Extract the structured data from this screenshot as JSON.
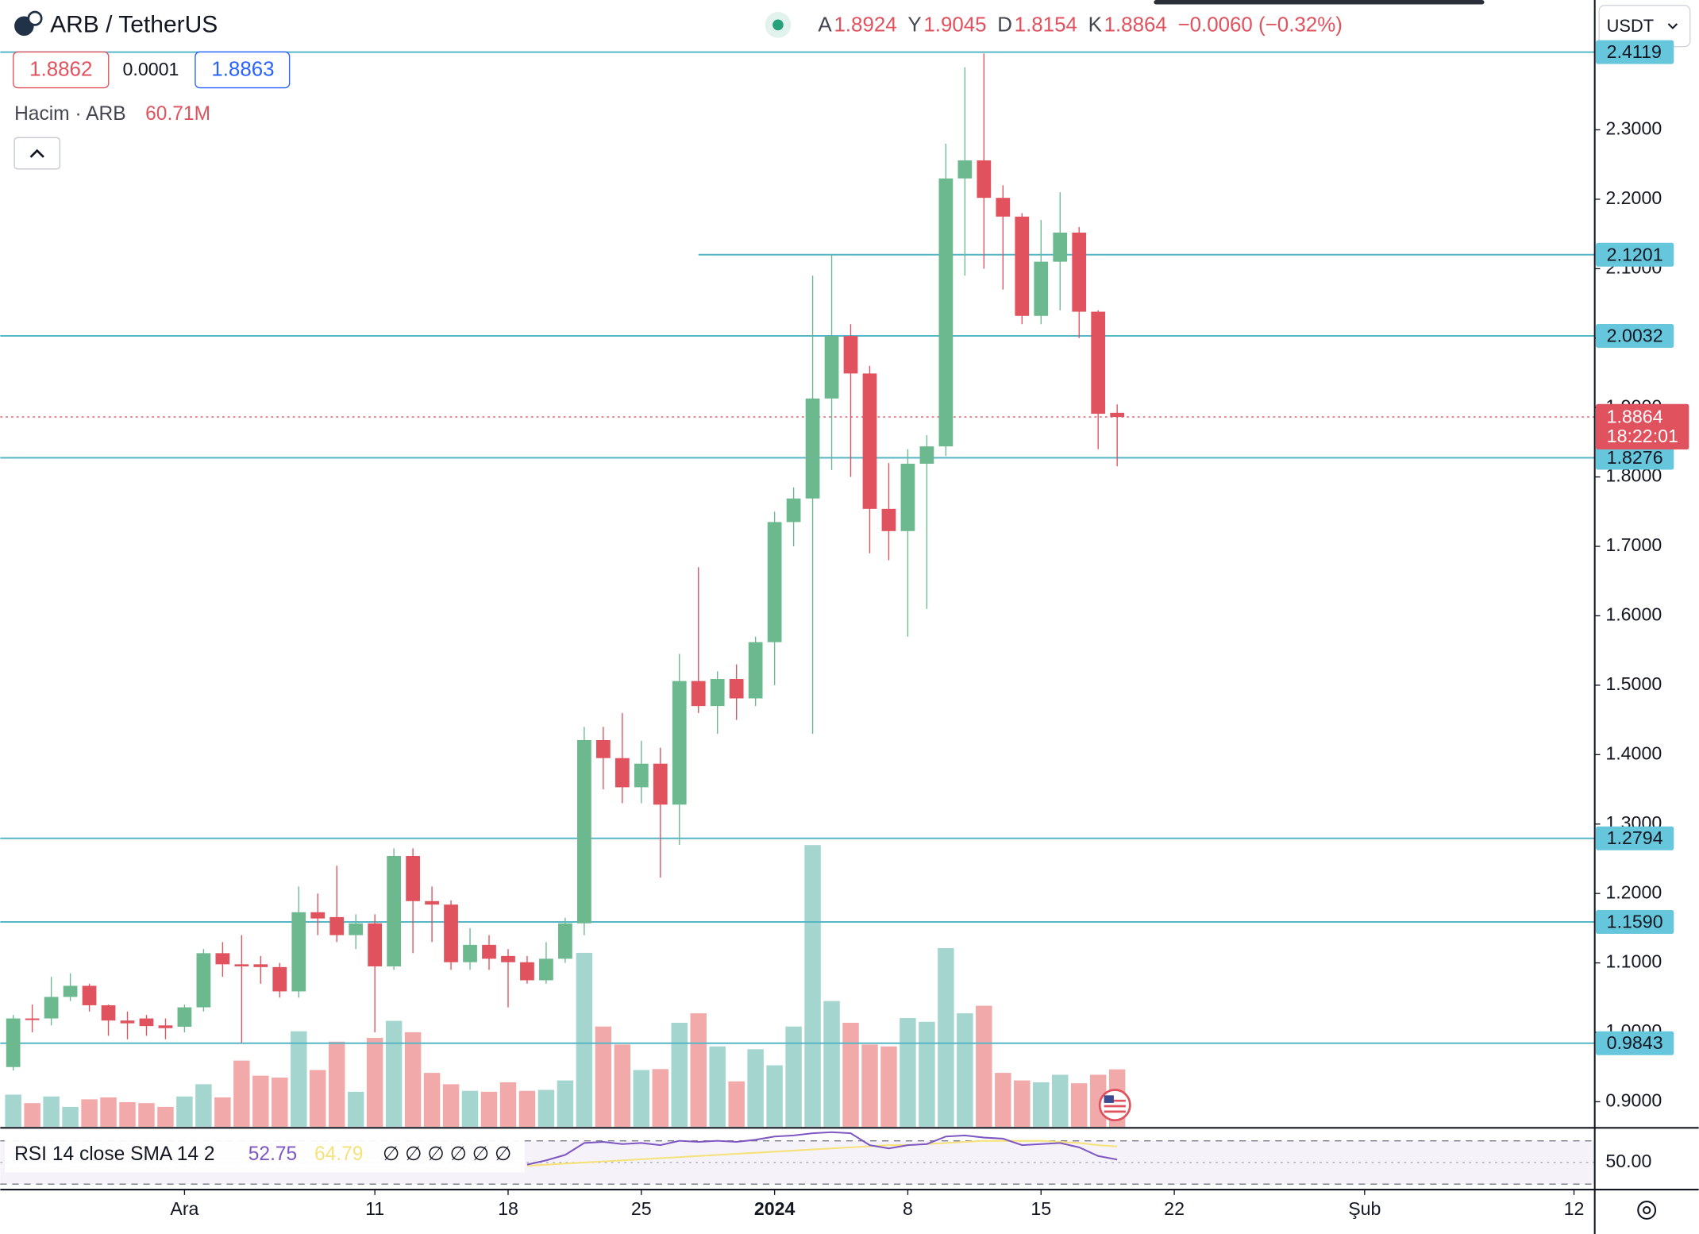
{
  "header": {
    "symbol": "ARB / TetherUS",
    "ohlc_labels": [
      "A",
      "Y",
      "D",
      "K"
    ],
    "change": "−0.0060 (−0.32%)",
    "currency": "USDT"
  },
  "order_panel": {
    "sell": 1.8862,
    "spread": 0.0001,
    "buy": 1.8863
  },
  "chart_data": {
    "type": "candlestick",
    "open": [
      0.95,
      1.02,
      1.02,
      1.051,
      1.067,
      1.039,
      1.017,
      1.02,
      1.01,
      1.008,
      1.036,
      1.114,
      1.098,
      1.098,
      1.094,
      1.059,
      1.173,
      1.166,
      1.14,
      1.157,
      1.095,
      1.254,
      1.189,
      1.184,
      1.101,
      1.126,
      1.11,
      1.101,
      1.075,
      1.106,
      1.157,
      1.421,
      1.395,
      1.353,
      1.387,
      1.328,
      1.506,
      1.47,
      1.509,
      1.481,
      1.562,
      1.735,
      1.769,
      1.913,
      2.003,
      1.949,
      1.754,
      1.722,
      1.819,
      1.844,
      2.23,
      2.256,
      2.202,
      2.175,
      2.032,
      2.11,
      2.152,
      2.038,
      1.8924
    ],
    "high": [
      1.025,
      1.04,
      1.08,
      1.085,
      1.07,
      1.04,
      1.03,
      1.025,
      1.02,
      1.04,
      1.12,
      1.13,
      1.14,
      1.11,
      1.1,
      1.21,
      1.2,
      1.24,
      1.17,
      1.17,
      1.265,
      1.265,
      1.21,
      1.19,
      1.15,
      1.14,
      1.12,
      1.11,
      1.13,
      1.165,
      1.44,
      1.44,
      1.46,
      1.42,
      1.41,
      1.545,
      1.67,
      1.52,
      1.53,
      1.57,
      1.75,
      1.785,
      2.09,
      2.12,
      2.02,
      1.96,
      1.82,
      1.84,
      1.86,
      2.28,
      2.39,
      2.41,
      2.22,
      2.18,
      2.17,
      2.21,
      2.16,
      2.04,
      1.9045
    ],
    "low": [
      0.945,
      1.0,
      1.01,
      1.045,
      1.03,
      0.995,
      0.99,
      0.995,
      0.99,
      1.0,
      1.03,
      1.08,
      0.985,
      1.07,
      1.05,
      1.05,
      1.14,
      1.13,
      1.12,
      1.0,
      1.09,
      1.114,
      1.13,
      1.09,
      1.09,
      1.09,
      1.036,
      1.07,
      1.07,
      1.1,
      1.14,
      1.35,
      1.33,
      1.33,
      1.223,
      1.27,
      1.46,
      1.43,
      1.45,
      1.47,
      1.5,
      1.7,
      1.43,
      1.81,
      1.8,
      1.69,
      1.68,
      1.57,
      1.61,
      1.83,
      2.09,
      2.1,
      2.07,
      2.02,
      2.02,
      2.04,
      2.0,
      1.84,
      1.8154
    ],
    "close": [
      1.02,
      1.018,
      1.051,
      1.067,
      1.039,
      1.017,
      1.013,
      1.009,
      1.006,
      1.036,
      1.114,
      1.098,
      1.095,
      1.094,
      1.059,
      1.173,
      1.164,
      1.14,
      1.157,
      1.095,
      1.254,
      1.189,
      1.184,
      1.101,
      1.126,
      1.106,
      1.101,
      1.075,
      1.106,
      1.157,
      1.421,
      1.395,
      1.353,
      1.387,
      1.328,
      1.506,
      1.47,
      1.509,
      1.481,
      1.562,
      1.735,
      1.769,
      1.913,
      2.003,
      1.949,
      1.754,
      1.722,
      1.819,
      1.844,
      2.23,
      2.256,
      2.202,
      2.175,
      2.032,
      2.11,
      2.152,
      2.038,
      1.891,
      1.8864
    ],
    "up_color": "#6cb98f",
    "down_color": "#e0525e",
    "xlim": [
      -0.68,
      83.09
    ],
    "xticks": [
      {
        "value": 9,
        "label": "Ara"
      },
      {
        "value": 19,
        "label": "11"
      },
      {
        "value": 26,
        "label": "18"
      },
      {
        "value": 33,
        "label": "25"
      },
      {
        "value": 40,
        "label": "2024"
      },
      {
        "value": 47,
        "label": "8"
      },
      {
        "value": 54,
        "label": "15"
      },
      {
        "value": 61,
        "label": "22"
      },
      {
        "value": 71,
        "label": "Şub"
      },
      {
        "value": 82,
        "label": "12"
      }
    ],
    "ylim": [
      0.864,
      2.487
    ],
    "yticks": [
      {
        "value": 0.9,
        "label": "0.9000"
      },
      {
        "value": 1.0,
        "label": "1.0000"
      },
      {
        "value": 1.1,
        "label": "1.1000"
      },
      {
        "value": 1.2,
        "label": "1.2000"
      },
      {
        "value": 1.3,
        "label": "1.3000"
      },
      {
        "value": 1.4,
        "label": "1.4000"
      },
      {
        "value": 1.5,
        "label": "1.5000"
      },
      {
        "value": 1.6,
        "label": "1.6000"
      },
      {
        "value": 1.7,
        "label": "1.7000"
      },
      {
        "value": 1.8,
        "label": "1.8000"
      },
      {
        "value": 1.9,
        "label": "1.9000"
      },
      {
        "value": 2.0,
        "label": "2.0000"
      },
      {
        "value": 2.1,
        "label": "2.1000"
      },
      {
        "value": 2.2,
        "label": "2.2000"
      },
      {
        "value": 2.3,
        "label": "2.3000"
      }
    ],
    "levels": [
      {
        "value": 2.4119
      },
      {
        "value": 2.1201,
        "x_start": 36
      },
      {
        "value": 2.0032
      },
      {
        "value": 1.8276
      },
      {
        "value": 1.2794
      },
      {
        "value": 1.159,
        "label": "1.1590"
      },
      {
        "value": 0.9843
      }
    ],
    "level_color": "#56b6c6",
    "last_price": {
      "value": 1.8864,
      "countdown": "18:22:01",
      "color": "#e0525e"
    },
    "volume": {
      "title": "Hacim · ARB",
      "value_label": "60.71M",
      "up_color": "#a5d5cf",
      "down_color": "#f2a9a9",
      "values": [
        34,
        25,
        32,
        21,
        29,
        31,
        26,
        25,
        21,
        32,
        45,
        31,
        70,
        54,
        52,
        101,
        60,
        90,
        37,
        94,
        112,
        100,
        57,
        45,
        38,
        37,
        47,
        38,
        39,
        49,
        184,
        106,
        87,
        60,
        61,
        110,
        120,
        85,
        48,
        82,
        65,
        106,
        298,
        133,
        110,
        87,
        85,
        115,
        111,
        189,
        120,
        128,
        57,
        49,
        47,
        55,
        46,
        55,
        60.71
      ]
    },
    "rsi": {
      "title": "RSI 14 close SMA 14 2",
      "extra": "∅ ∅ ∅ ∅ ∅ ∅",
      "ylim": [
        26,
        80
      ],
      "yticks": [
        {
          "value": 50,
          "label": "50.00"
        }
      ],
      "bands": [
        30,
        70
      ],
      "series": [
        {
          "color": "#7e57c2",
          "values": [
            null,
            null,
            null,
            null,
            null,
            null,
            null,
            null,
            null,
            null,
            null,
            null,
            null,
            null,
            null,
            null,
            null,
            null,
            null,
            null,
            null,
            null,
            null,
            null,
            null,
            null,
            null,
            48,
            52,
            57,
            68,
            69,
            67,
            68,
            66,
            70,
            69,
            70,
            69,
            71,
            74,
            75,
            77,
            78,
            77,
            66,
            63,
            66,
            67,
            74,
            75,
            73,
            72,
            66,
            67,
            68,
            64,
            56,
            52.75
          ]
        },
        {
          "color": "#f5e27a",
          "values": [
            null,
            null,
            null,
            null,
            null,
            null,
            null,
            null,
            null,
            null,
            null,
            null,
            null,
            null,
            null,
            null,
            null,
            null,
            null,
            null,
            null,
            null,
            null,
            null,
            null,
            null,
            null,
            47,
            48,
            49,
            50,
            51,
            52,
            53,
            54,
            55,
            56,
            57,
            58,
            59,
            60,
            61,
            62,
            63,
            64,
            65,
            66,
            66,
            67,
            68,
            69,
            70,
            70,
            70,
            70,
            69,
            68,
            66,
            64.79
          ]
        }
      ]
    }
  }
}
